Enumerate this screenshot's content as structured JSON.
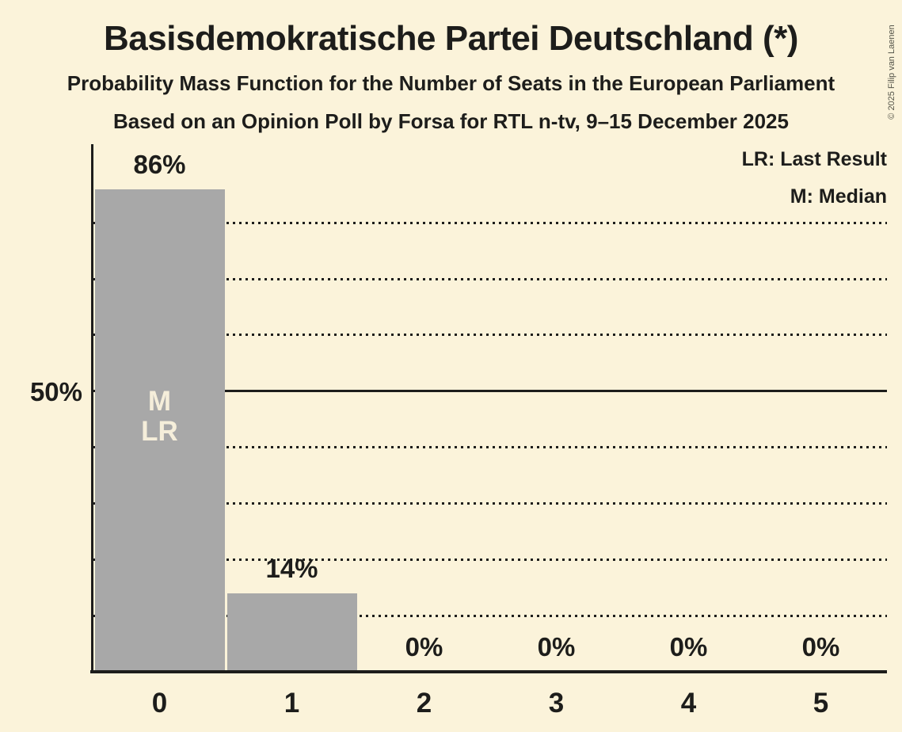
{
  "header": {
    "title": "Basisdemokratische Partei Deutschland (*)",
    "subtitle_line1": "Probability Mass Function for the Number of Seats in the European Parliament",
    "subtitle_line2": "Based on an Opinion Poll by Forsa for RTL n-tv, 9–15 December 2025"
  },
  "legend": {
    "last_result": "LR: Last Result",
    "median": "M: Median"
  },
  "copyright": "© 2025 Filip van Laenen",
  "colors": {
    "background": "#fbf3da",
    "bar": "#a8a8a8",
    "text": "#1d1d1b",
    "bar_inside_label": "#f5eeda"
  },
  "chart_data": {
    "type": "bar",
    "title": "Basisdemokratische Partei Deutschland (*)",
    "categories": [
      "0",
      "1",
      "2",
      "3",
      "4",
      "5"
    ],
    "values": [
      86,
      14,
      0,
      0,
      0,
      0
    ],
    "value_labels": [
      "86%",
      "14%",
      "0%",
      "0%",
      "0%",
      "0%"
    ],
    "bar_inside_labels": [
      [
        "M",
        "LR"
      ],
      [],
      [],
      [],
      [],
      []
    ],
    "xlabel": "",
    "ylabel": "",
    "ylim": [
      0,
      94
    ],
    "y_axis_tick": {
      "value": 50,
      "label": "50%"
    },
    "gridlines": {
      "dotted_percent": [
        10,
        20,
        30,
        40,
        60,
        70,
        80
      ],
      "solid_percent": [
        50
      ]
    },
    "legend_position": "top-right",
    "annotation_notes": [
      "LR: Last Result",
      "M: Median"
    ]
  }
}
